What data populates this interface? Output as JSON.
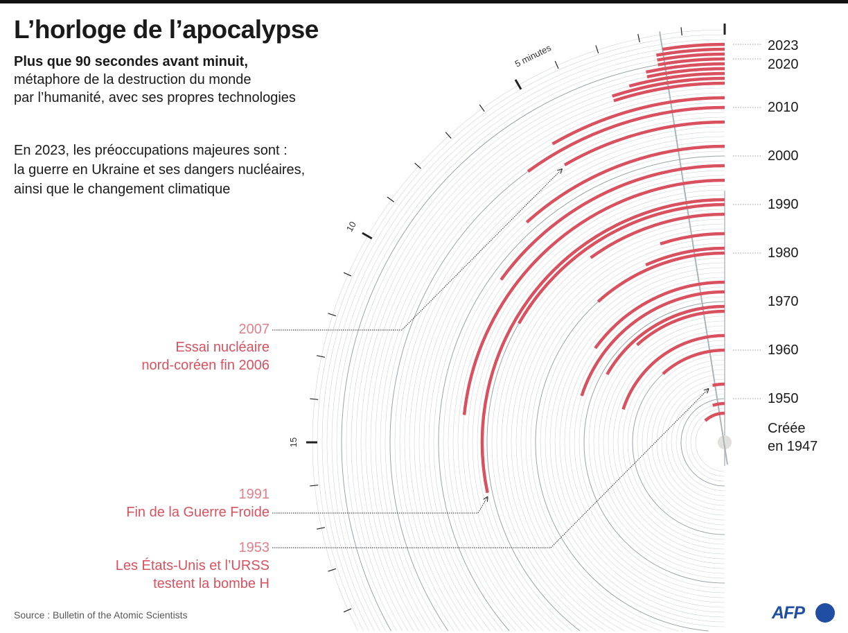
{
  "header": {
    "title": "L’horloge de l’apocalypse",
    "subtitle_bold": "Plus que 90 secondes avant minuit,",
    "subtitle_lines": [
      "métaphore de la destruction du monde",
      "par l’humanité, avec ses propres technologies"
    ],
    "concerns_lines": [
      "En 2023, les préoccupations majeures sont :",
      "la guerre en Ukraine et ses dangers nucléaires,",
      "ainsi que le changement climatique"
    ]
  },
  "annotations": [
    {
      "year": "2007",
      "lines": [
        "Essai nucléaire",
        "nord-coréen fin 2006"
      ]
    },
    {
      "year": "1991",
      "lines": [
        "Fin de la Guerre Froide"
      ]
    },
    {
      "year": "1953",
      "lines": [
        "Les États-Unis et l’URSS",
        "testent la bombe H"
      ]
    }
  ],
  "year_labels": [
    "2023",
    "2020",
    "2010",
    "2000",
    "1990",
    "1980",
    "1970",
    "1960",
    "1950"
  ],
  "created_label": [
    "Créée",
    "en 1947"
  ],
  "minute_labels": {
    "five": "5 minutes",
    "ten": "10",
    "fifteen": "15"
  },
  "footer": {
    "source": "Source : Bulletin of the Atomic Scientists",
    "logo": "AFP"
  },
  "colors": {
    "arc": "#d9515e",
    "ring": "#cfd3d6",
    "hand": "#a9b4ba",
    "logo": "#1f4ea3"
  },
  "chart_data": {
    "type": "radial-bar",
    "title": "L’horloge de l’apocalypse",
    "unit": "minutes avant minuit",
    "points": [
      {
        "year": 1947,
        "minutes": 7
      },
      {
        "year": 1949,
        "minutes": 3
      },
      {
        "year": 1953,
        "minutes": 2
      },
      {
        "year": 1960,
        "minutes": 7
      },
      {
        "year": 1963,
        "minutes": 12
      },
      {
        "year": 1968,
        "minutes": 7
      },
      {
        "year": 1969,
        "minutes": 10
      },
      {
        "year": 1972,
        "minutes": 12
      },
      {
        "year": 1974,
        "minutes": 9
      },
      {
        "year": 1980,
        "minutes": 7
      },
      {
        "year": 1981,
        "minutes": 4
      },
      {
        "year": 1984,
        "minutes": 3
      },
      {
        "year": 1988,
        "minutes": 6
      },
      {
        "year": 1990,
        "minutes": 10
      },
      {
        "year": 1991,
        "minutes": 17
      },
      {
        "year": 1995,
        "minutes": 14
      },
      {
        "year": 1998,
        "minutes": 9
      },
      {
        "year": 2002,
        "minutes": 7
      },
      {
        "year": 2007,
        "minutes": 5
      },
      {
        "year": 2010,
        "minutes": 6
      },
      {
        "year": 2012,
        "minutes": 5
      },
      {
        "year": 2015,
        "minutes": 3
      },
      {
        "year": 2016,
        "minutes": 3
      },
      {
        "year": 2017,
        "minutes": 2.5
      },
      {
        "year": 2018,
        "minutes": 2
      },
      {
        "year": 2019,
        "minutes": 2
      },
      {
        "year": 2020,
        "minutes": 1.67
      },
      {
        "year": 2021,
        "minutes": 1.67
      },
      {
        "year": 2022,
        "minutes": 1.67
      },
      {
        "year": 2023,
        "minutes": 1.5
      }
    ],
    "year_range": [
      1947,
      2023
    ],
    "minute_axis": [
      0,
      20
    ]
  }
}
